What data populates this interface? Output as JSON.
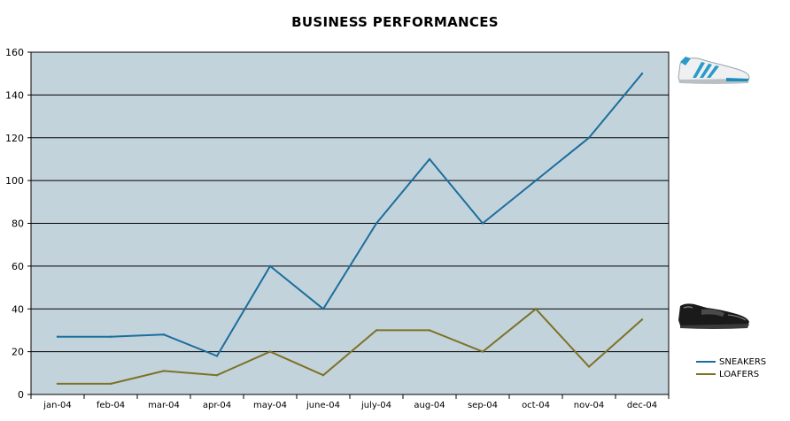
{
  "chart_data": {
    "type": "line",
    "title": "BUSINESS PERFORMANCES",
    "xlabel": "",
    "ylabel": "",
    "categories": [
      "jan-04",
      "feb-04",
      "mar-04",
      "apr-04",
      "may-04",
      "june-04",
      "july-04",
      "aug-04",
      "sep-04",
      "oct-04",
      "nov-04",
      "dec-04"
    ],
    "ylim": [
      0,
      160
    ],
    "yticks": [
      "0",
      "20",
      "40",
      "60",
      "80",
      "100",
      "120",
      "140",
      "160"
    ],
    "grid": true,
    "legend_position": "bottom-right",
    "series": [
      {
        "name": "SNEAKERS",
        "color": "#1a6e9c",
        "values": [
          27,
          27,
          28,
          18,
          60,
          40,
          80,
          110,
          80,
          100,
          120,
          150
        ]
      },
      {
        "name": "LOAFERS",
        "color": "#7d7227",
        "values": [
          5,
          5,
          11,
          9,
          20,
          9,
          30,
          30,
          20,
          40,
          13,
          35
        ]
      }
    ],
    "plot_background": "#c3d3dc",
    "series_images": [
      "sneaker-image",
      "loafer-image"
    ]
  }
}
